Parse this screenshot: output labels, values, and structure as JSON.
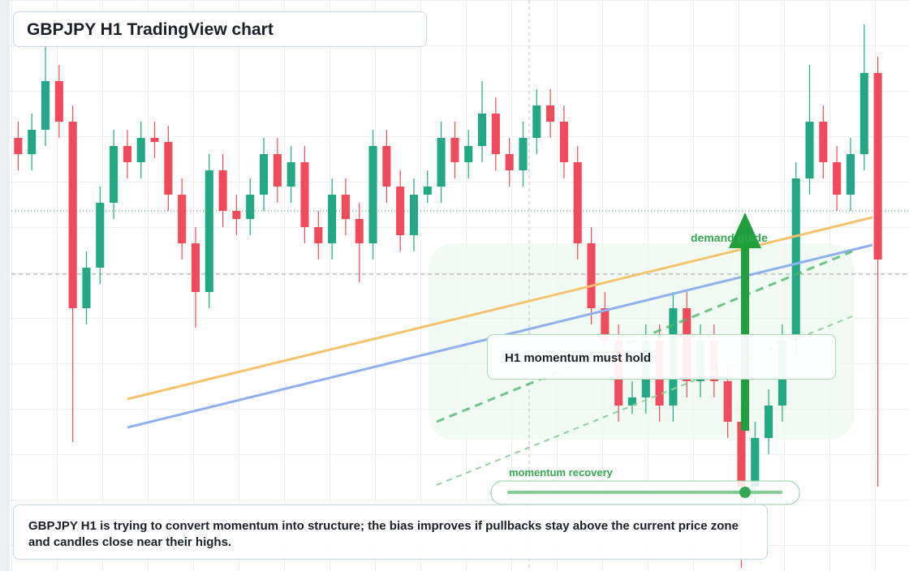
{
  "header": {
    "title": "GBPJPY H1 TradingView chart"
  },
  "chart_data": {
    "type": "candlestick",
    "ylim": [
      0,
      704
    ],
    "up_color": "#22a884",
    "down_color": "#ef4b5a",
    "ohlc": [
      [
        534,
        554,
        494,
        514
      ],
      [
        514,
        564,
        494,
        544
      ],
      [
        544,
        664,
        524,
        604
      ],
      [
        604,
        624,
        534,
        554
      ],
      [
        554,
        574,
        159,
        324
      ],
      [
        324,
        394,
        304,
        374
      ],
      [
        374,
        474,
        354,
        454
      ],
      [
        454,
        544,
        434,
        524
      ],
      [
        524,
        544,
        484,
        504
      ],
      [
        504,
        554,
        484,
        534
      ],
      [
        534,
        554,
        509,
        529
      ],
      [
        529,
        549,
        444,
        464
      ],
      [
        464,
        484,
        384,
        404
      ],
      [
        404,
        424,
        300,
        344
      ],
      [
        344,
        514,
        324,
        494
      ],
      [
        494,
        514,
        424,
        444
      ],
      [
        444,
        464,
        414,
        434
      ],
      [
        434,
        484,
        414,
        464
      ],
      [
        464,
        534,
        444,
        514
      ],
      [
        514,
        534,
        454,
        474
      ],
      [
        474,
        524,
        454,
        504
      ],
      [
        504,
        524,
        404,
        424
      ],
      [
        424,
        444,
        384,
        404
      ],
      [
        404,
        484,
        384,
        464
      ],
      [
        464,
        484,
        414,
        434
      ],
      [
        434,
        454,
        356,
        404
      ],
      [
        404,
        544,
        384,
        524
      ],
      [
        524,
        544,
        454,
        474
      ],
      [
        474,
        494,
        394,
        414
      ],
      [
        414,
        484,
        394,
        464
      ],
      [
        464,
        494,
        454,
        474
      ],
      [
        474,
        554,
        454,
        534
      ],
      [
        534,
        554,
        484,
        504
      ],
      [
        504,
        544,
        484,
        524
      ],
      [
        524,
        604,
        504,
        564
      ],
      [
        564,
        584,
        494,
        514
      ],
      [
        514,
        534,
        474,
        494
      ],
      [
        494,
        554,
        474,
        534
      ],
      [
        534,
        594,
        514,
        574
      ],
      [
        574,
        594,
        534,
        554
      ],
      [
        554,
        574,
        484,
        504
      ],
      [
        504,
        524,
        384,
        404
      ],
      [
        404,
        424,
        304,
        324
      ],
      [
        324,
        344,
        264,
        284
      ],
      [
        284,
        304,
        184,
        204
      ],
      [
        204,
        234,
        194,
        214
      ],
      [
        214,
        304,
        194,
        284
      ],
      [
        284,
        304,
        184,
        204
      ],
      [
        204,
        344,
        184,
        324
      ],
      [
        324,
        344,
        214,
        234
      ],
      [
        234,
        304,
        214,
        284
      ],
      [
        284,
        304,
        214,
        234
      ],
      [
        234,
        254,
        164,
        184
      ],
      [
        184,
        204,
        4,
        104
      ],
      [
        104,
        184,
        84,
        164
      ],
      [
        164,
        224,
        144,
        204
      ],
      [
        204,
        304,
        184,
        284
      ],
      [
        284,
        504,
        264,
        484
      ],
      [
        484,
        624,
        464,
        554
      ],
      [
        554,
        574,
        484,
        504
      ],
      [
        504,
        524,
        444,
        464
      ],
      [
        464,
        534,
        444,
        514
      ],
      [
        514,
        674,
        494,
        614
      ],
      [
        614,
        634,
        104,
        384
      ]
    ]
  },
  "annotations": {
    "demand": "demand guide",
    "momentum": "H1 momentum must hold",
    "recovery": "momentum recovery"
  },
  "note": "GBPJPY H1 is trying to convert momentum into structure; the bias improves if pullbacks stay above the current price zone and candles close near their highs."
}
